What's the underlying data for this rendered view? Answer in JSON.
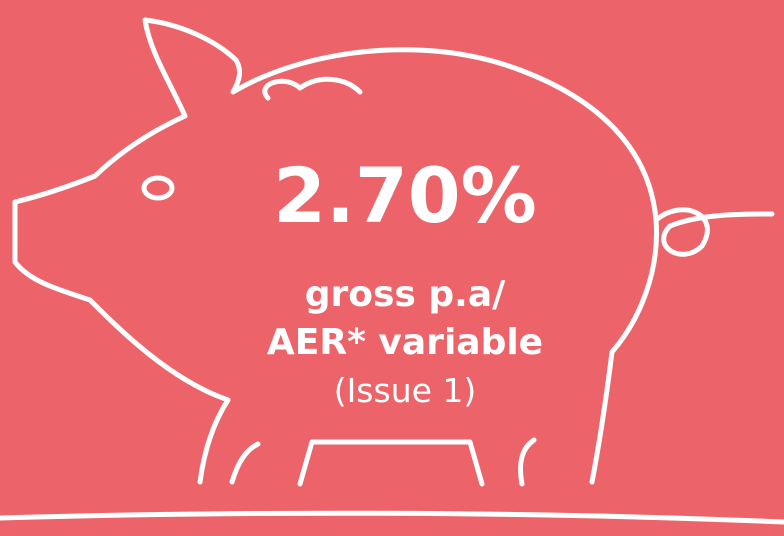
{
  "rate": "2.70%",
  "line1": "gross p.a/",
  "line2": "AER* variable",
  "issue": "(Issue 1)"
}
